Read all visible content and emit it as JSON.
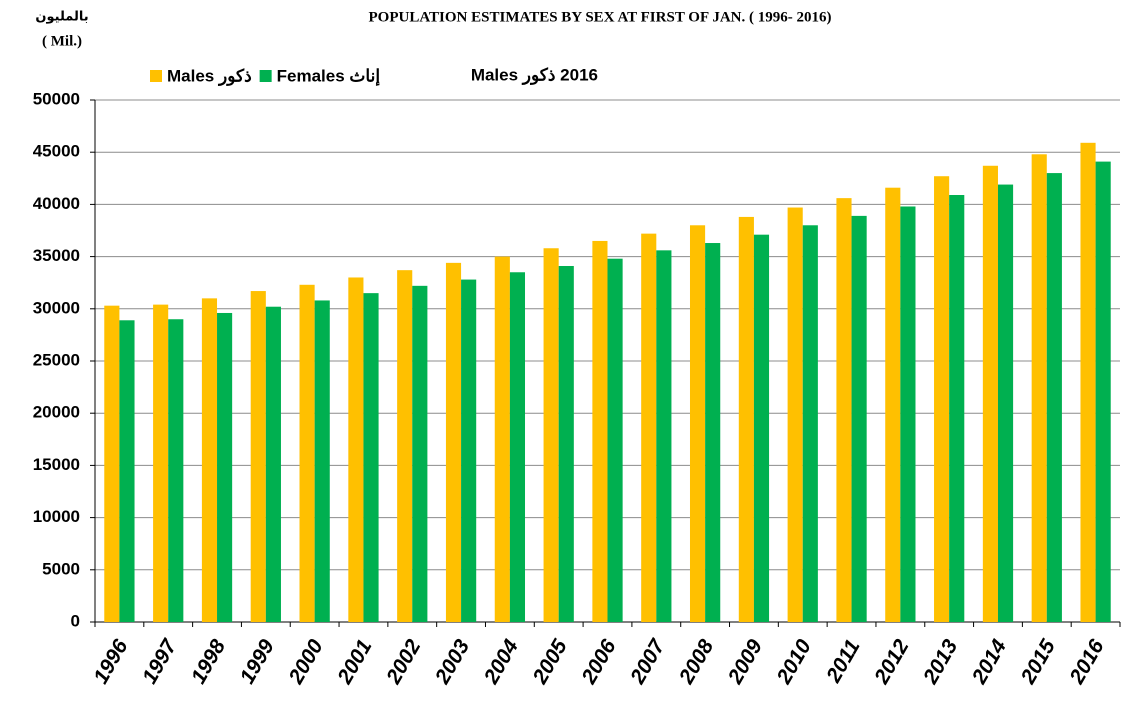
{
  "chart_data": {
    "type": "bar",
    "title": "POPULATION ESTIMATES  BY SEX  AT  FIRST OF JAN. ( 1996- 2016)",
    "unit_label_ar": "بالمليون",
    "unit_label": "( Mil.)",
    "legend_note": "2016 ذكور Males",
    "categories": [
      "1996",
      "1997",
      "1998",
      "1999",
      "2000",
      "2001",
      "2002",
      "2003",
      "2004",
      "2005",
      "2006",
      "2007",
      "2008",
      "2009",
      "2010",
      "2011",
      "2012",
      "2013",
      "2014",
      "2015",
      "2016"
    ],
    "series": [
      {
        "name": "Males ذكور",
        "color": "#FFC000",
        "values": [
          30300,
          30400,
          31000,
          31700,
          32300,
          33000,
          33700,
          34400,
          35000,
          35800,
          36500,
          37200,
          38000,
          38800,
          39700,
          40600,
          41600,
          42700,
          43700,
          44800,
          45900
        ]
      },
      {
        "name": "Females إناث",
        "color": "#00B050",
        "values": [
          28900,
          29000,
          29600,
          30200,
          30800,
          31500,
          32200,
          32800,
          33500,
          34100,
          34800,
          35600,
          36300,
          37100,
          38000,
          38900,
          39800,
          40900,
          41900,
          43000,
          44100
        ]
      }
    ],
    "ylim": [
      0,
      50000
    ],
    "yticks": [
      0,
      5000,
      10000,
      15000,
      20000,
      25000,
      30000,
      35000,
      40000,
      45000,
      50000
    ],
    "grid": true
  }
}
